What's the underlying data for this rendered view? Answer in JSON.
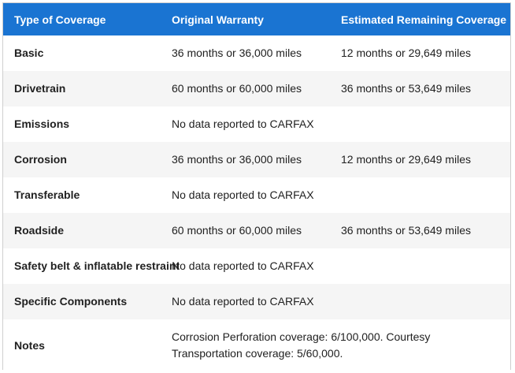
{
  "headers": [
    "Type of Coverage",
    "Original Warranty",
    "Estimated Remaining Coverage"
  ],
  "rows": [
    {
      "type": "Basic",
      "original": "36 months or 36,000 miles",
      "remaining": "12 months or 29,649 miles"
    },
    {
      "type": "Drivetrain",
      "original": "60 months or 60,000 miles",
      "remaining": "36 months or 53,649 miles"
    },
    {
      "type": "Emissions",
      "original": "No data reported to CARFAX",
      "remaining": ""
    },
    {
      "type": "Corrosion",
      "original": "36 months or 36,000 miles",
      "remaining": "12 months or 29,649 miles"
    },
    {
      "type": "Transferable",
      "original": "No data reported to CARFAX",
      "remaining": ""
    },
    {
      "type": "Roadside",
      "original": "60 months or 60,000 miles",
      "remaining": "36 months or 53,649 miles"
    },
    {
      "type": "Safety belt & inflatable restraint",
      "original": "No data reported to CARFAX",
      "remaining": ""
    },
    {
      "type": "Specific Components",
      "original": "No data reported to CARFAX",
      "remaining": ""
    },
    {
      "type": "Notes",
      "original": "Corrosion Perforation coverage: 6/100,000. Courtesy Transportation coverage: 5/60,000.",
      "remaining": ""
    }
  ]
}
